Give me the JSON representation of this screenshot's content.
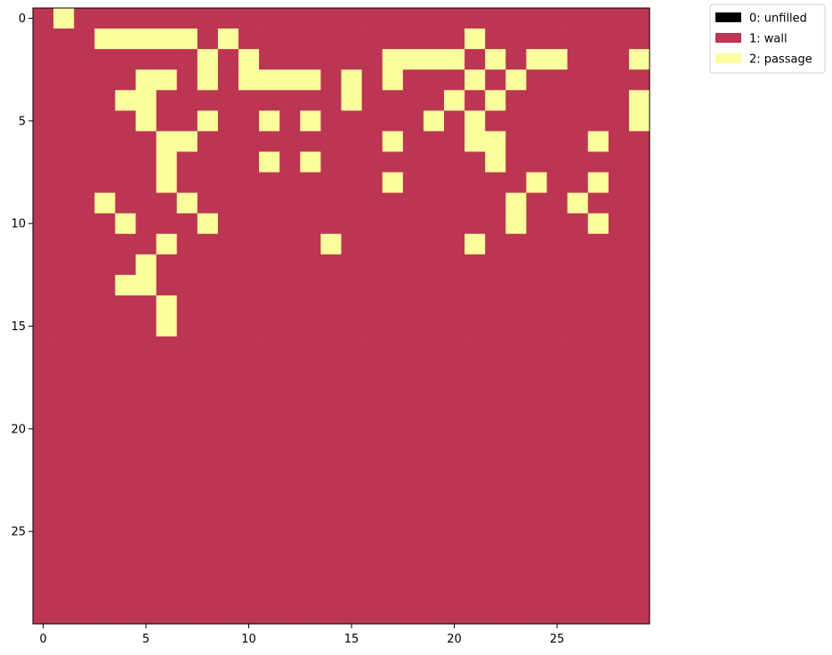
{
  "chart_data": {
    "type": "heatmap",
    "title": "",
    "xlabel": "",
    "ylabel": "",
    "xlim": [
      -0.5,
      29.5
    ],
    "ylim": [
      29.5,
      -0.5
    ],
    "x_ticks": [
      0,
      5,
      10,
      15,
      20,
      25
    ],
    "y_ticks": [
      0,
      5,
      10,
      15,
      20,
      25
    ],
    "x_tick_labels": [
      "0",
      "5",
      "10",
      "15",
      "20",
      "25"
    ],
    "y_tick_labels": [
      "0",
      "5",
      "10",
      "15",
      "20",
      "25"
    ],
    "legend": {
      "placement": "outside-top-right",
      "entries": [
        {
          "value": 0,
          "label": "0: unfilled",
          "color": "#000000"
        },
        {
          "value": 1,
          "label": "1: wall",
          "color": "#bc3552"
        },
        {
          "value": 2,
          "label": "2: passage",
          "color": "#fcfd9c"
        }
      ]
    },
    "grid": [
      "121111111111111111111111111111",
      "111222221211111111111211111111",
      "111111112121111112222121221112",
      "111112212122221212111212111111",
      "111122111111111211112121111112",
      "111112112112121111121211111112",
      "111111221111111112111221111211",
      "111111211112121111111121111111",
      "111111211111111112111111211211",
      "111211121111111111111112112111",
      "111121112111111111111112111211",
      "111111211111112111111211111111",
      "111112111111111111111111111111",
      "111122111111111111111111111111",
      "111111211111111111111111111111",
      "111111211111111111111111111111",
      "111111111111111111111111111111",
      "111111111111111111111111111111",
      "111111111111111111111111111111",
      "111111111111111111111111111111",
      "111111111111111111111111111111",
      "111111111111111111111111111111",
      "111111111111111111111111111111",
      "111111111111111111111111111111",
      "111111111111111111111111111111",
      "111111111111111111111111111111",
      "111111111111111111111111111111",
      "111111111111111111111111111111",
      "111111111111111111111111111111",
      "111111111111111111111111111111"
    ]
  }
}
